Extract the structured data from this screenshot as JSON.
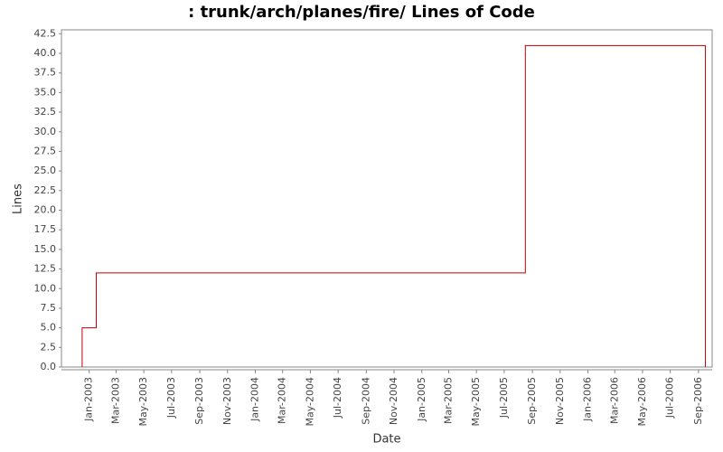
{
  "chart_data": {
    "type": "step",
    "title": ": trunk/arch/planes/fire/ Lines of Code",
    "xlabel": "Date",
    "ylabel": "Lines",
    "x": [
      "2002-12",
      "2003-01",
      "2005-08",
      "2006-09"
    ],
    "values": [
      5,
      12,
      41,
      0
    ],
    "color": "#c00000",
    "xlim": [
      "2002-11",
      "2006-10"
    ],
    "xticks": [
      {
        "value": "2003-01",
        "label": "Jan-2003"
      },
      {
        "value": "2003-03",
        "label": "Mar-2003"
      },
      {
        "value": "2003-05",
        "label": "May-2003"
      },
      {
        "value": "2003-07",
        "label": "Jul-2003"
      },
      {
        "value": "2003-09",
        "label": "Sep-2003"
      },
      {
        "value": "2003-11",
        "label": "Nov-2003"
      },
      {
        "value": "2004-01",
        "label": "Jan-2004"
      },
      {
        "value": "2004-03",
        "label": "Mar-2004"
      },
      {
        "value": "2004-05",
        "label": "May-2004"
      },
      {
        "value": "2004-07",
        "label": "Jul-2004"
      },
      {
        "value": "2004-09",
        "label": "Sep-2004"
      },
      {
        "value": "2004-11",
        "label": "Nov-2004"
      },
      {
        "value": "2005-01",
        "label": "Jan-2005"
      },
      {
        "value": "2005-03",
        "label": "Mar-2005"
      },
      {
        "value": "2005-05",
        "label": "May-2005"
      },
      {
        "value": "2005-07",
        "label": "Jul-2005"
      },
      {
        "value": "2005-09",
        "label": "Sep-2005"
      },
      {
        "value": "2005-11",
        "label": "Nov-2005"
      },
      {
        "value": "2006-01",
        "label": "Jan-2006"
      },
      {
        "value": "2006-03",
        "label": "Mar-2006"
      },
      {
        "value": "2006-05",
        "label": "May-2006"
      },
      {
        "value": "2006-07",
        "label": "Jul-2006"
      },
      {
        "value": "2006-09",
        "label": "Sep-2006"
      }
    ],
    "ylim": [
      0,
      43
    ],
    "yticks": [
      {
        "value": 0,
        "label": "0.0"
      },
      2.5,
      {
        "value": 5,
        "label": "5.0"
      },
      7.5,
      {
        "value": 10,
        "label": "10.0"
      },
      12.5,
      {
        "value": 15,
        "label": "15.0"
      },
      17.5,
      {
        "value": 20,
        "label": "20.0"
      },
      22.5,
      {
        "value": 25,
        "label": "25.0"
      },
      27.5,
      {
        "value": 30,
        "label": "30.0"
      },
      32.5,
      {
        "value": 35,
        "label": "35.0"
      },
      37.5,
      {
        "value": 40,
        "label": "40.0"
      },
      42.5
    ],
    "grid": false
  }
}
